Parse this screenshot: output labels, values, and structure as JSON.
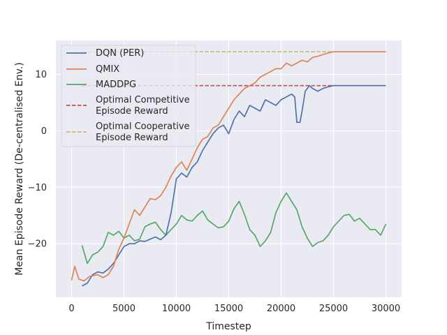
{
  "chart_data": {
    "type": "line",
    "xlabel": "Timestep",
    "ylabel": "Mean Episode Reward (De-centralised Env.)",
    "xlim": [
      -1500,
      31500
    ],
    "ylim": [
      -29.5,
      16
    ],
    "x_ticks": [
      0,
      5000,
      10000,
      15000,
      20000,
      25000,
      30000
    ],
    "x_tick_labels": [
      "0",
      "5000",
      "10000",
      "15000",
      "20000",
      "25000",
      "30000"
    ],
    "y_ticks": [
      -20,
      -10,
      0,
      10
    ],
    "y_tick_labels": [
      "−20",
      "−10",
      "0",
      "10"
    ],
    "grid": true,
    "background": "#eaeaf2",
    "legend_position": "top-left",
    "series": [
      {
        "name": "DQN (PER)",
        "color": "#4c72b0",
        "style": "solid",
        "points": [
          [
            1000,
            -27.5
          ],
          [
            1500,
            -27
          ],
          [
            2000,
            -25.5
          ],
          [
            2500,
            -25
          ],
          [
            3000,
            -25.2
          ],
          [
            3500,
            -24.5
          ],
          [
            4000,
            -23.5
          ],
          [
            4500,
            -22
          ],
          [
            5000,
            -20.5
          ],
          [
            5500,
            -20
          ],
          [
            6000,
            -20
          ],
          [
            6500,
            -19.5
          ],
          [
            7000,
            -19.6
          ],
          [
            7500,
            -19.2
          ],
          [
            8000,
            -18.8
          ],
          [
            8500,
            -19.3
          ],
          [
            9000,
            -18.5
          ],
          [
            9500,
            -14.5
          ],
          [
            10000,
            -8.5
          ],
          [
            10500,
            -7.5
          ],
          [
            11000,
            -8.2
          ],
          [
            11500,
            -6.5
          ],
          [
            12000,
            -5.5
          ],
          [
            12500,
            -3.5
          ],
          [
            13000,
            -2
          ],
          [
            13500,
            -0.5
          ],
          [
            14000,
            0.5
          ],
          [
            14500,
            1
          ],
          [
            15000,
            -0.5
          ],
          [
            15500,
            2
          ],
          [
            16000,
            3.5
          ],
          [
            16500,
            2.5
          ],
          [
            17000,
            4.5
          ],
          [
            17500,
            4
          ],
          [
            18000,
            3.5
          ],
          [
            18500,
            5.5
          ],
          [
            19000,
            5
          ],
          [
            19500,
            4.5
          ],
          [
            20000,
            5.5
          ],
          [
            20500,
            6
          ],
          [
            21000,
            6.5
          ],
          [
            21300,
            6
          ],
          [
            21500,
            1.5
          ],
          [
            21800,
            1.5
          ],
          [
            22000,
            3.5
          ],
          [
            22300,
            7
          ],
          [
            22700,
            8
          ],
          [
            23000,
            7.5
          ],
          [
            23500,
            7
          ],
          [
            24000,
            7.5
          ],
          [
            24500,
            7.8
          ],
          [
            25000,
            8
          ],
          [
            26000,
            8
          ],
          [
            27000,
            8
          ],
          [
            28000,
            8
          ],
          [
            29000,
            8
          ],
          [
            30000,
            8
          ]
        ]
      },
      {
        "name": "QMIX",
        "color": "#dd8452",
        "style": "solid",
        "points": [
          [
            0,
            -26.5
          ],
          [
            300,
            -24
          ],
          [
            700,
            -26.3
          ],
          [
            1200,
            -26.6
          ],
          [
            1700,
            -25.8
          ],
          [
            2500,
            -25.5
          ],
          [
            3000,
            -26
          ],
          [
            3500,
            -25.5
          ],
          [
            4000,
            -24
          ],
          [
            4500,
            -21
          ],
          [
            5000,
            -19
          ],
          [
            5500,
            -16.5
          ],
          [
            6000,
            -14
          ],
          [
            6500,
            -15
          ],
          [
            7000,
            -13.5
          ],
          [
            7500,
            -12
          ],
          [
            8000,
            -12.2
          ],
          [
            8500,
            -11.5
          ],
          [
            9000,
            -10
          ],
          [
            9500,
            -8
          ],
          [
            10000,
            -6.5
          ],
          [
            10500,
            -5.5
          ],
          [
            11000,
            -7
          ],
          [
            11500,
            -5
          ],
          [
            12000,
            -3
          ],
          [
            12500,
            -1.5
          ],
          [
            13000,
            -1
          ],
          [
            13500,
            0.5
          ],
          [
            14000,
            1
          ],
          [
            14500,
            2.5
          ],
          [
            15000,
            4
          ],
          [
            15500,
            5.5
          ],
          [
            16000,
            6.5
          ],
          [
            16500,
            7.5
          ],
          [
            17000,
            8
          ],
          [
            17500,
            8.5
          ],
          [
            18000,
            9.5
          ],
          [
            18500,
            10
          ],
          [
            19000,
            10.5
          ],
          [
            19500,
            11
          ],
          [
            20000,
            11
          ],
          [
            20500,
            12
          ],
          [
            21000,
            11.5
          ],
          [
            21500,
            12
          ],
          [
            22000,
            12.5
          ],
          [
            22500,
            12.2
          ],
          [
            23000,
            13
          ],
          [
            23500,
            13.2
          ],
          [
            24000,
            13.5
          ],
          [
            24500,
            13.8
          ],
          [
            25000,
            14
          ],
          [
            26000,
            14
          ],
          [
            27000,
            14
          ],
          [
            28000,
            14
          ],
          [
            29000,
            14
          ],
          [
            30000,
            14
          ]
        ]
      },
      {
        "name": "MADDPG",
        "color": "#55a868",
        "style": "solid",
        "points": [
          [
            1000,
            -20.3
          ],
          [
            1500,
            -23.5
          ],
          [
            2000,
            -22
          ],
          [
            2500,
            -21.5
          ],
          [
            3000,
            -20.5
          ],
          [
            3500,
            -18
          ],
          [
            4000,
            -18.5
          ],
          [
            4500,
            -17.8
          ],
          [
            5000,
            -19
          ],
          [
            5500,
            -18.5
          ],
          [
            6000,
            -19.5
          ],
          [
            6500,
            -19.2
          ],
          [
            7000,
            -17
          ],
          [
            7500,
            -16.5
          ],
          [
            8000,
            -16.2
          ],
          [
            8500,
            -17.5
          ],
          [
            9000,
            -18.5
          ],
          [
            9500,
            -17.5
          ],
          [
            10000,
            -16.5
          ],
          [
            10500,
            -15
          ],
          [
            11000,
            -15.8
          ],
          [
            11500,
            -16
          ],
          [
            12000,
            -15
          ],
          [
            12500,
            -14.2
          ],
          [
            13000,
            -15.8
          ],
          [
            13500,
            -16.5
          ],
          [
            14000,
            -17.2
          ],
          [
            14500,
            -17
          ],
          [
            15000,
            -16
          ],
          [
            15500,
            -13.8
          ],
          [
            16000,
            -12.5
          ],
          [
            16500,
            -14.8
          ],
          [
            17000,
            -17.5
          ],
          [
            17500,
            -18.5
          ],
          [
            18000,
            -20.5
          ],
          [
            18500,
            -19.5
          ],
          [
            19000,
            -18
          ],
          [
            19500,
            -14.5
          ],
          [
            20000,
            -12.5
          ],
          [
            20500,
            -11
          ],
          [
            21000,
            -12.5
          ],
          [
            21500,
            -14
          ],
          [
            22000,
            -17
          ],
          [
            22500,
            -19
          ],
          [
            23000,
            -20.5
          ],
          [
            23500,
            -19.8
          ],
          [
            24000,
            -19.5
          ],
          [
            24500,
            -18.5
          ],
          [
            25000,
            -17
          ],
          [
            25500,
            -16
          ],
          [
            26000,
            -15
          ],
          [
            26500,
            -14.8
          ],
          [
            27000,
            -16
          ],
          [
            27500,
            -15.5
          ],
          [
            28000,
            -16.5
          ],
          [
            28500,
            -17.5
          ],
          [
            29000,
            -17.5
          ],
          [
            29500,
            -18.5
          ],
          [
            30000,
            -16.5
          ]
        ]
      },
      {
        "name": "Optimal Competitive\nEpisode Reward",
        "color": "#c44e52",
        "style": "dashed",
        "points": [
          [
            1000,
            8
          ],
          [
            30000,
            8
          ]
        ]
      },
      {
        "name": "Optimal Cooperative\nEpisode Reward",
        "color": "#ccb974",
        "style": "dashed",
        "points": [
          [
            1000,
            14
          ],
          [
            30000,
            14
          ]
        ]
      }
    ]
  }
}
